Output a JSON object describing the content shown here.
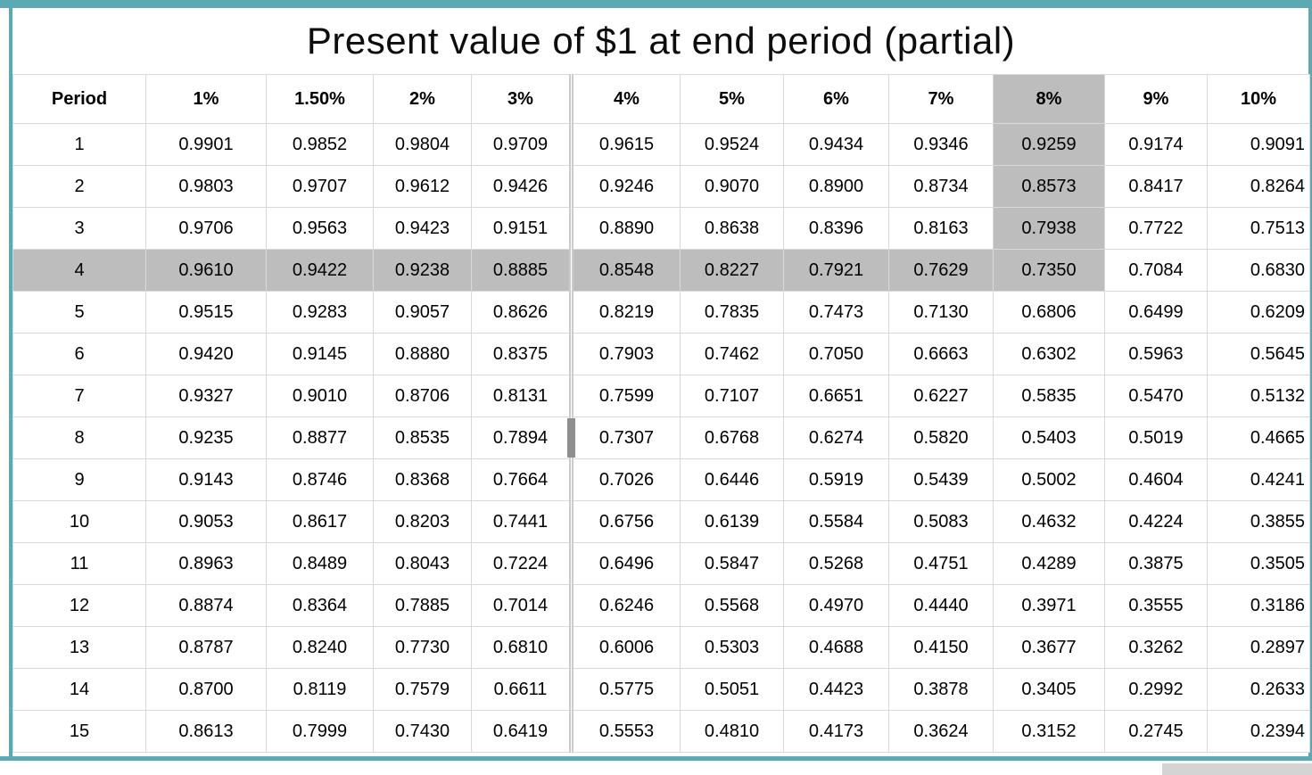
{
  "title": "Present value of $1 at end period (partial)",
  "colors": {
    "accent_teal": "#5ba9b3",
    "highlight_gray": "#bdbdbd"
  },
  "table": {
    "columns": [
      "Period",
      "1%",
      "1.50%",
      "2%",
      "3%",
      "4%",
      "5%",
      "6%",
      "7%",
      "8%",
      "9%",
      "10%"
    ],
    "rows": [
      {
        "period": "1",
        "values": [
          "0.9901",
          "0.9852",
          "0.9804",
          "0.9709",
          "0.9615",
          "0.9524",
          "0.9434",
          "0.9346",
          "0.9259",
          "0.9174",
          "0.9091"
        ]
      },
      {
        "period": "2",
        "values": [
          "0.9803",
          "0.9707",
          "0.9612",
          "0.9426",
          "0.9246",
          "0.9070",
          "0.8900",
          "0.8734",
          "0.8573",
          "0.8417",
          "0.8264"
        ]
      },
      {
        "period": "3",
        "values": [
          "0.9706",
          "0.9563",
          "0.9423",
          "0.9151",
          "0.8890",
          "0.8638",
          "0.8396",
          "0.8163",
          "0.7938",
          "0.7722",
          "0.7513"
        ]
      },
      {
        "period": "4",
        "values": [
          "0.9610",
          "0.9422",
          "0.9238",
          "0.8885",
          "0.8548",
          "0.8227",
          "0.7921",
          "0.7629",
          "0.7350",
          "0.7084",
          "0.6830"
        ]
      },
      {
        "period": "5",
        "values": [
          "0.9515",
          "0.9283",
          "0.9057",
          "0.8626",
          "0.8219",
          "0.7835",
          "0.7473",
          "0.7130",
          "0.6806",
          "0.6499",
          "0.6209"
        ]
      },
      {
        "period": "6",
        "values": [
          "0.9420",
          "0.9145",
          "0.8880",
          "0.8375",
          "0.7903",
          "0.7462",
          "0.7050",
          "0.6663",
          "0.6302",
          "0.5963",
          "0.5645"
        ]
      },
      {
        "period": "7",
        "values": [
          "0.9327",
          "0.9010",
          "0.8706",
          "0.8131",
          "0.7599",
          "0.7107",
          "0.6651",
          "0.6227",
          "0.5835",
          "0.5470",
          "0.5132"
        ]
      },
      {
        "period": "8",
        "values": [
          "0.9235",
          "0.8877",
          "0.8535",
          "0.7894",
          "0.7307",
          "0.6768",
          "0.6274",
          "0.5820",
          "0.5403",
          "0.5019",
          "0.4665"
        ]
      },
      {
        "period": "9",
        "values": [
          "0.9143",
          "0.8746",
          "0.8368",
          "0.7664",
          "0.7026",
          "0.6446",
          "0.5919",
          "0.5439",
          "0.5002",
          "0.4604",
          "0.4241"
        ]
      },
      {
        "period": "10",
        "values": [
          "0.9053",
          "0.8617",
          "0.8203",
          "0.7441",
          "0.6756",
          "0.6139",
          "0.5584",
          "0.5083",
          "0.4632",
          "0.4224",
          "0.3855"
        ]
      },
      {
        "period": "11",
        "values": [
          "0.8963",
          "0.8489",
          "0.8043",
          "0.7224",
          "0.6496",
          "0.5847",
          "0.5268",
          "0.4751",
          "0.4289",
          "0.3875",
          "0.3505"
        ]
      },
      {
        "period": "12",
        "values": [
          "0.8874",
          "0.8364",
          "0.7885",
          "0.7014",
          "0.6246",
          "0.5568",
          "0.4970",
          "0.4440",
          "0.3971",
          "0.3555",
          "0.3186"
        ]
      },
      {
        "period": "13",
        "values": [
          "0.8787",
          "0.8240",
          "0.7730",
          "0.6810",
          "0.6006",
          "0.5303",
          "0.4688",
          "0.4150",
          "0.3677",
          "0.3262",
          "0.2897"
        ]
      },
      {
        "period": "14",
        "values": [
          "0.8700",
          "0.8119",
          "0.7579",
          "0.6611",
          "0.5775",
          "0.5051",
          "0.4423",
          "0.3878",
          "0.3405",
          "0.2992",
          "0.2633"
        ]
      },
      {
        "period": "15",
        "values": [
          "0.8613",
          "0.7999",
          "0.7430",
          "0.6419",
          "0.5553",
          "0.4810",
          "0.4173",
          "0.3624",
          "0.3152",
          "0.2745",
          "0.2394"
        ]
      }
    ],
    "highlight": {
      "column": "8%",
      "column_highlighted_through_period": 4,
      "row_period": 4,
      "row_highlighted_through_column": "8%"
    }
  }
}
